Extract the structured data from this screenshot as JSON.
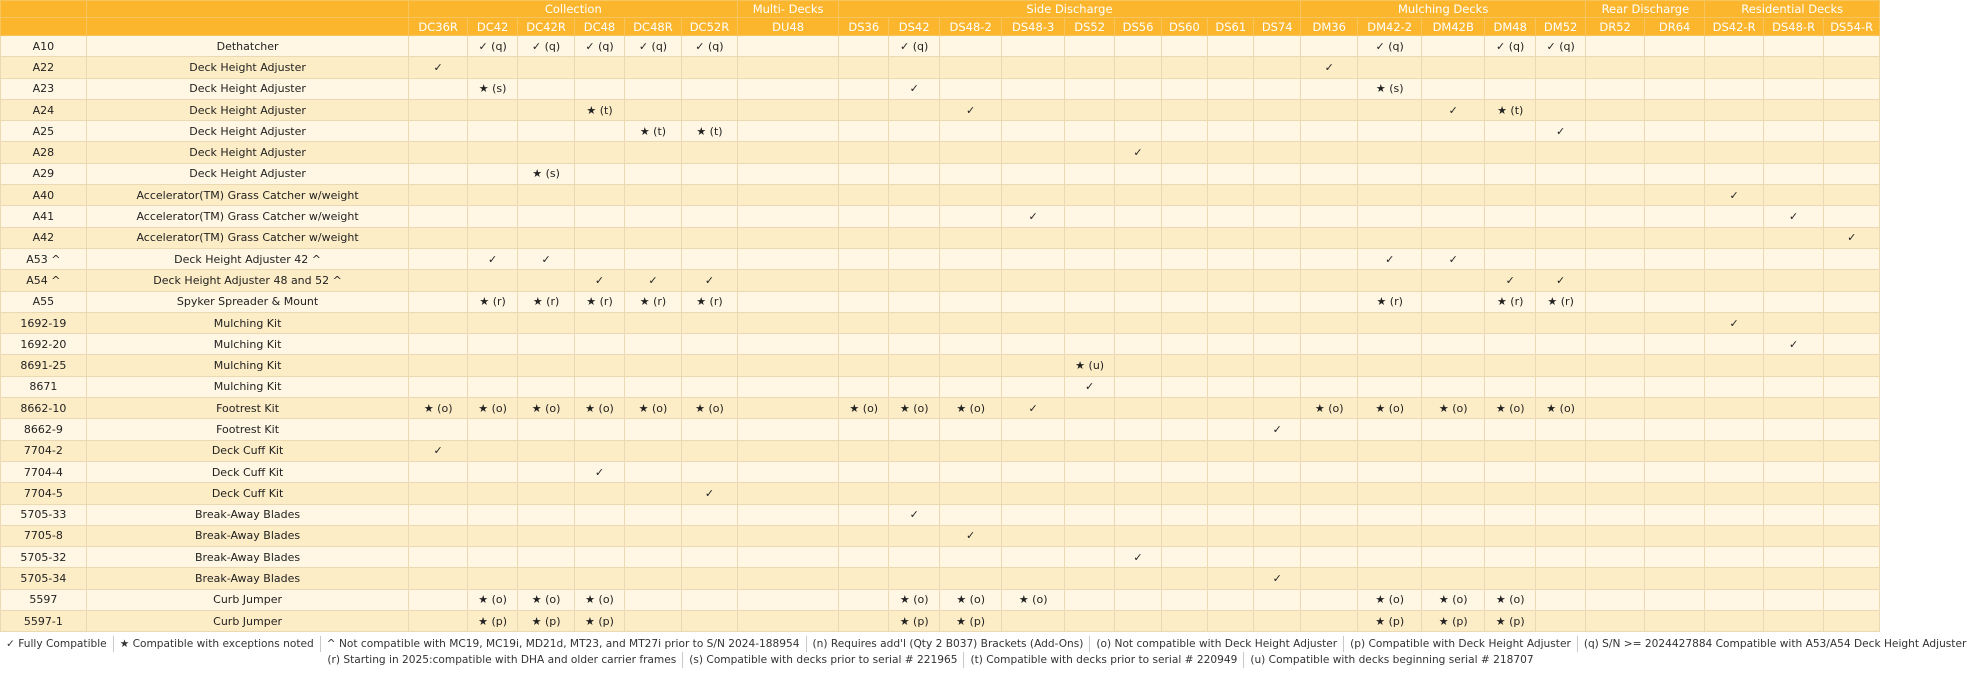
{
  "groups": [
    {
      "label": "Collection",
      "span": 6
    },
    {
      "label": "Multi- Decks",
      "span": 1
    },
    {
      "label": "Side Discharge",
      "span": 9
    },
    {
      "label": "Mulching Decks",
      "span": 5
    },
    {
      "label": "Rear Discharge",
      "span": 2
    },
    {
      "label": "Residential Decks",
      "span": 3
    }
  ],
  "models": [
    "DC36R",
    "DC42",
    "DC42R",
    "DC48",
    "DC48R",
    "DC52R",
    "DU48",
    "DS36",
    "DS42",
    "DS48-2",
    "DS48-3",
    "DS52",
    "DS56",
    "DS60",
    "DS61",
    "DS74",
    "DM36",
    "DM42-2",
    "DM42B",
    "DM48",
    "DM52",
    "DR52",
    "DR64",
    "DS42-R",
    "DS48-R",
    "DS54-R"
  ],
  "rows": [
    {
      "code": "A10",
      "name": "Dethatcher",
      "cells": {
        "1": "✓ (q)",
        "2": "✓ (q)",
        "3": "✓ (q)",
        "4": "✓ (q)",
        "5": "✓ (q)",
        "8": "✓ (q)",
        "17": "✓ (q)",
        "19": "✓ (q)",
        "20": "✓ (q)"
      }
    },
    {
      "code": "A22",
      "name": "Deck Height Adjuster",
      "cells": {
        "0": "✓",
        "16": "✓"
      }
    },
    {
      "code": "A23",
      "name": "Deck Height Adjuster",
      "cells": {
        "1": "★ (s)",
        "8": "✓",
        "17": "★ (s)"
      }
    },
    {
      "code": "A24",
      "name": "Deck Height Adjuster",
      "cells": {
        "3": "★ (t)",
        "9": "✓",
        "18": "✓",
        "19": "★ (t)"
      }
    },
    {
      "code": "A25",
      "name": "Deck Height Adjuster",
      "cells": {
        "4": "★ (t)",
        "5": "★ (t)",
        "20": "✓"
      }
    },
    {
      "code": "A28",
      "name": "Deck Height Adjuster",
      "cells": {
        "12": "✓"
      }
    },
    {
      "code": "A29",
      "name": "Deck Height Adjuster",
      "cells": {
        "2": "★ (s)"
      }
    },
    {
      "code": "A40",
      "name": "Accelerator(TM) Grass Catcher w/weight",
      "cells": {
        "23": "✓"
      }
    },
    {
      "code": "A41",
      "name": "Accelerator(TM) Grass Catcher w/weight",
      "cells": {
        "10": "✓",
        "24": "✓"
      }
    },
    {
      "code": "A42",
      "name": "Accelerator(TM) Grass Catcher w/weight",
      "cells": {
        "25": "✓"
      }
    },
    {
      "code": "A53 ^",
      "name": "Deck Height Adjuster 42 ^",
      "cells": {
        "1": "✓",
        "2": "✓",
        "17": "✓",
        "18": "✓"
      }
    },
    {
      "code": "A54 ^",
      "name": "Deck Height Adjuster 48 and 52 ^",
      "cells": {
        "3": "✓",
        "4": "✓",
        "5": "✓",
        "19": "✓",
        "20": "✓"
      }
    },
    {
      "code": "A55",
      "name": "Spyker Spreader & Mount",
      "cells": {
        "1": "★ (r)",
        "2": "★ (r)",
        "3": "★ (r)",
        "4": "★ (r)",
        "5": "★ (r)",
        "17": "★ (r)",
        "19": "★ (r)",
        "20": "★ (r)"
      }
    },
    {
      "code": "1692-19",
      "name": "Mulching Kit",
      "cells": {
        "23": "✓"
      }
    },
    {
      "code": "1692-20",
      "name": "Mulching Kit",
      "cells": {
        "24": "✓"
      }
    },
    {
      "code": "8691-25",
      "name": "Mulching Kit",
      "cells": {
        "11": "★ (u)"
      }
    },
    {
      "code": "8671",
      "name": "Mulching Kit",
      "cells": {
        "11": "✓"
      }
    },
    {
      "code": "8662-10",
      "name": "Footrest Kit",
      "cells": {
        "0": "★ (o)",
        "1": "★ (o)",
        "2": "★ (o)",
        "3": "★ (o)",
        "4": "★ (o)",
        "5": "★ (o)",
        "7": "★ (o)",
        "8": "★ (o)",
        "9": "★ (o)",
        "10": "✓",
        "16": "★ (o)",
        "17": "★ (o)",
        "18": "★ (o)",
        "19": "★ (o)",
        "20": "★ (o)"
      }
    },
    {
      "code": "8662-9",
      "name": "Footrest Kit",
      "cells": {
        "15": "✓"
      }
    },
    {
      "code": "7704-2",
      "name": "Deck Cuff Kit",
      "cells": {
        "0": "✓"
      }
    },
    {
      "code": "7704-4",
      "name": "Deck Cuff Kit",
      "cells": {
        "3": "✓"
      }
    },
    {
      "code": "7704-5",
      "name": "Deck Cuff Kit",
      "cells": {
        "5": "✓"
      }
    },
    {
      "code": "5705-33",
      "name": "Break-Away Blades",
      "cells": {
        "8": "✓"
      }
    },
    {
      "code": "7705-8",
      "name": "Break-Away Blades",
      "cells": {
        "9": "✓"
      }
    },
    {
      "code": "5705-32",
      "name": "Break-Away Blades",
      "cells": {
        "12": "✓"
      }
    },
    {
      "code": "5705-34",
      "name": "Break-Away Blades",
      "cells": {
        "15": "✓"
      }
    },
    {
      "code": "5597",
      "name": "Curb Jumper",
      "cells": {
        "1": "★ (o)",
        "2": "★ (o)",
        "3": "★ (o)",
        "8": "★ (o)",
        "9": "★ (o)",
        "10": "★ (o)",
        "17": "★ (o)",
        "18": "★ (o)",
        "19": "★ (o)"
      }
    },
    {
      "code": "5597-1",
      "name": "Curb Jumper",
      "cells": {
        "1": "★ (p)",
        "2": "★ (p)",
        "3": "★ (p)",
        "8": "★ (p)",
        "9": "★ (p)",
        "17": "★ (p)",
        "18": "★ (p)",
        "19": "★ (p)"
      }
    }
  ],
  "legend": {
    "line1": [
      "✓ Fully Compatible",
      "★ Compatible with exceptions noted",
      "^ Not compatible with MC19, MC19i, MD21d, MT23, and MT27i prior to S/N 2024-188954",
      "(n) Requires add'l (Qty 2 B037) Brackets (Add-Ons)",
      "(o) Not compatible with Deck Height Adjuster",
      "(p) Compatible with Deck Height Adjuster",
      "(q) S/N >= 2024427884 Compatible with A53/A54 Deck Height Adjuster"
    ],
    "line2": [
      "(r) Starting in 2025:compatible with DHA and older carrier frames",
      "(s) Compatible with decks prior to serial # 221965",
      "(t) Compatible with decks prior to serial # 220949",
      "(u) Compatible with decks beginning serial # 218707"
    ]
  }
}
